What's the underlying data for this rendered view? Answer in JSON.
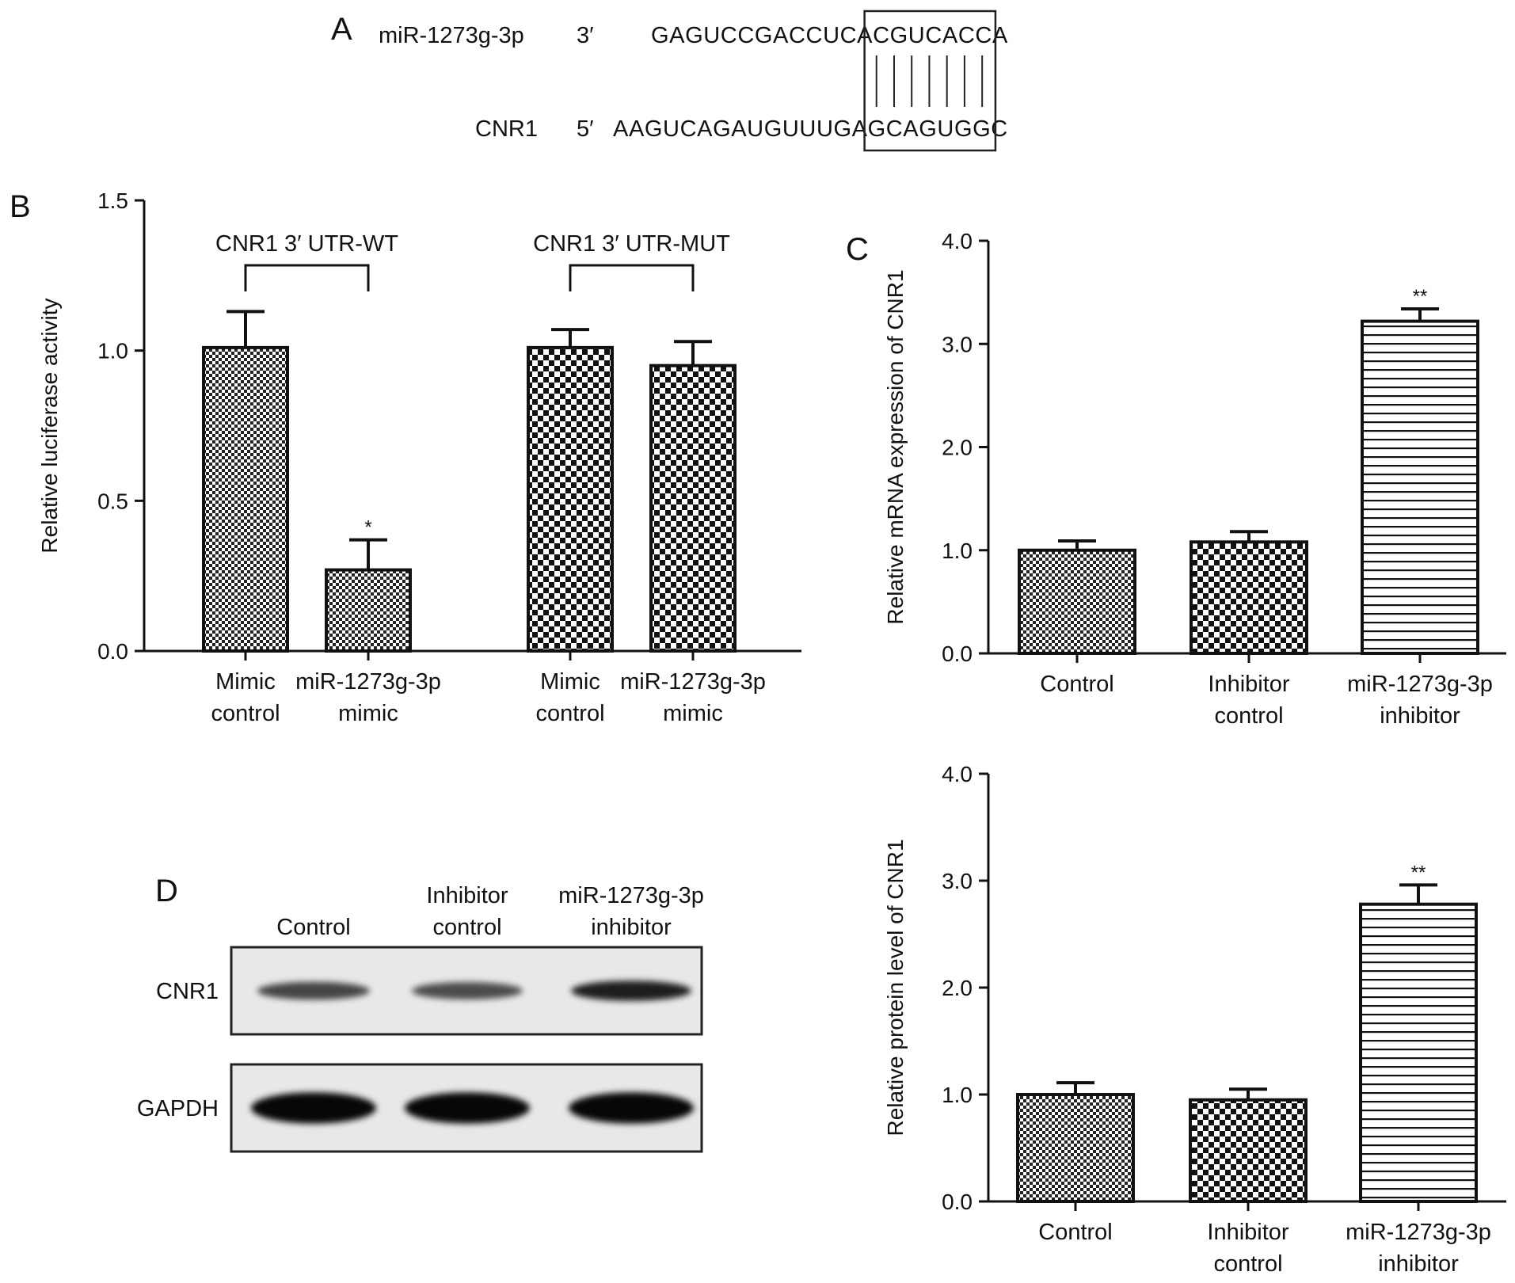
{
  "panel_a": {
    "label": "A",
    "mirna": {
      "name": "miR-1273g-3p",
      "end": "3′",
      "pre": "GAGUCCGACCUCA",
      "seed": "CGUCACC",
      "post": "A"
    },
    "target": {
      "name": "CNR1",
      "end": "5′",
      "pre": "AAGUCAGAUGUUUGA",
      "seed": "GCAGUGG",
      "post": "C"
    },
    "pair_count": 7
  },
  "panel_d": {
    "label": "D",
    "lanes": [
      {
        "line1": "",
        "line2": "Control"
      },
      {
        "line1": "Inhibitor",
        "line2": "control"
      },
      {
        "line1": "miR-1273g-3p",
        "line2": "inhibitor"
      }
    ],
    "rows": [
      {
        "name": "CNR1",
        "intensity": [
          0.55,
          0.5,
          0.8
        ]
      },
      {
        "name": "GAPDH",
        "intensity": [
          0.95,
          0.95,
          0.95
        ]
      }
    ]
  },
  "chart_data": [
    {
      "panel": "B",
      "type": "bar",
      "ylabel": "Relative luciferase activity",
      "ylim": [
        0,
        1.5
      ],
      "yticks": [
        "0.0",
        "0.5",
        "1.0",
        "1.5"
      ],
      "groups": [
        {
          "name": "CNR1 3′ UTR-WT"
        },
        {
          "name": "CNR1 3′ UTR-MUT"
        }
      ],
      "bars": [
        {
          "line1": "Mimic",
          "line2": "control",
          "value": 1.01,
          "error": 0.12,
          "sig": "",
          "pattern": "fine"
        },
        {
          "line1": "miR-1273g-3p",
          "line2": "mimic",
          "value": 0.27,
          "error": 0.1,
          "sig": "*",
          "pattern": "fine"
        },
        {
          "line1": "Mimic",
          "line2": "control",
          "value": 1.01,
          "error": 0.06,
          "sig": "",
          "pattern": "coarse"
        },
        {
          "line1": "miR-1273g-3p",
          "line2": "mimic",
          "value": 0.95,
          "error": 0.08,
          "sig": "",
          "pattern": "coarse"
        }
      ]
    },
    {
      "panel": "C",
      "type": "bar",
      "ylabel": "Relative mRNA expression of CNR1",
      "ylim": [
        0,
        4
      ],
      "yticks": [
        "0.0",
        "1.0",
        "2.0",
        "3.0",
        "4.0"
      ],
      "bars": [
        {
          "line1": "Control",
          "line2": "",
          "value": 1.0,
          "error": 0.09,
          "sig": "",
          "pattern": "fine"
        },
        {
          "line1": "Inhibitor",
          "line2": "control",
          "value": 1.08,
          "error": 0.1,
          "sig": "",
          "pattern": "coarse"
        },
        {
          "line1": "miR-1273g-3p",
          "line2": "inhibitor",
          "value": 3.22,
          "error": 0.12,
          "sig": "**",
          "pattern": "hlines"
        }
      ]
    },
    {
      "panel": "",
      "type": "bar",
      "ylabel": "Relative protein level of CNR1",
      "ylim": [
        0,
        4
      ],
      "yticks": [
        "0.0",
        "1.0",
        "2.0",
        "3.0",
        "4.0"
      ],
      "bars": [
        {
          "line1": "Control",
          "line2": "",
          "value": 1.0,
          "error": 0.11,
          "sig": "",
          "pattern": "fine"
        },
        {
          "line1": "Inhibitor",
          "line2": "control",
          "value": 0.95,
          "error": 0.1,
          "sig": "",
          "pattern": "coarse"
        },
        {
          "line1": "miR-1273g-3p",
          "line2": "inhibitor",
          "value": 2.78,
          "error": 0.18,
          "sig": "**",
          "pattern": "hlines"
        }
      ]
    }
  ]
}
